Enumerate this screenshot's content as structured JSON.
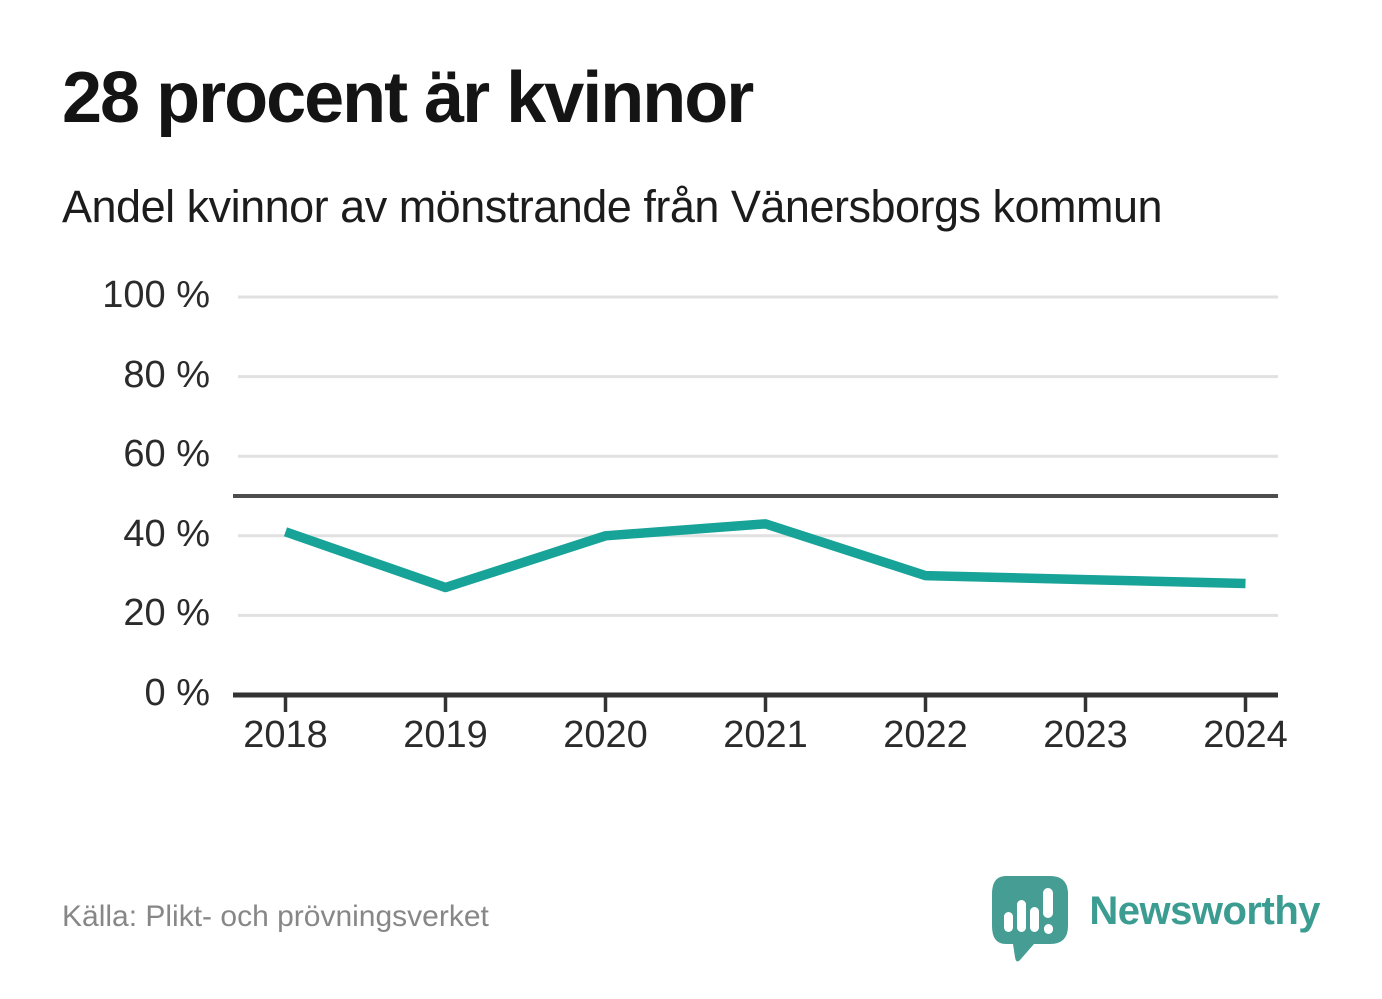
{
  "header": {
    "title": "28 procent är kvinnor",
    "subtitle": "Andel kvinnor av mönstrande från Vänersborgs kommun"
  },
  "footer": {
    "source": "Källa: Plikt- och prövningsverket",
    "brand_name": "Newsworthy",
    "brand_icon": "newsworthy-speech-bubble-bar-chart-icon"
  },
  "colors": {
    "line": "#17a398",
    "grid": "#e1e1e1",
    "reference_line": "#4d4d4d",
    "axis": "#333333",
    "brand": "#459d94",
    "title_text": "#141414",
    "source_text": "#878787"
  },
  "chart_data": {
    "type": "line",
    "title": "28 procent är kvinnor",
    "subtitle": "Andel kvinnor av mönstrande från Vänersborgs kommun",
    "categories": [
      "2018",
      "2019",
      "2020",
      "2021",
      "2022",
      "2023",
      "2024"
    ],
    "series": [
      {
        "name": "Andel kvinnor av mönstrande",
        "values": [
          41,
          27,
          40,
          43,
          30,
          29,
          28
        ]
      }
    ],
    "unit": "%",
    "ylim": [
      0,
      100
    ],
    "yticks": [
      0,
      20,
      40,
      60,
      80,
      100
    ],
    "ytick_labels": [
      "0 %",
      "20 %",
      "40 %",
      "60 %",
      "80 %",
      "100 %"
    ],
    "reference_line": 50,
    "grid": "horizontal",
    "legend": "none",
    "source": "Källa: Plikt- och prövningsverket"
  }
}
